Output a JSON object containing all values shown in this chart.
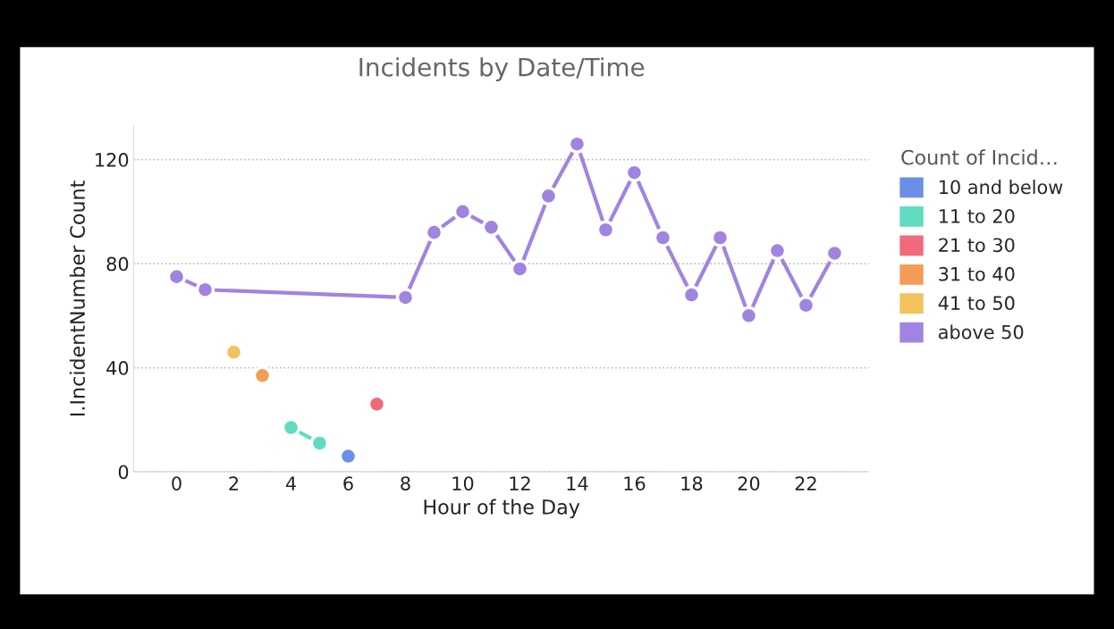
{
  "chart_data": {
    "type": "line",
    "title": "Incidents by Date/Time",
    "xlabel": "Hour of the Day",
    "ylabel": "I.IncidentNumber Count",
    "legend_title": "Count of Incid…",
    "series": [
      {
        "name": "10 and below",
        "color": "#6b8fe8",
        "x": [
          6
        ],
        "values": [
          6
        ]
      },
      {
        "name": "11 to 20",
        "color": "#5fdcc0",
        "x": [
          4,
          5
        ],
        "values": [
          17,
          11
        ]
      },
      {
        "name": "21 to 30",
        "color": "#ee6a7c",
        "x": [
          7
        ],
        "values": [
          26
        ]
      },
      {
        "name": "31 to 40",
        "color": "#f39c55",
        "x": [
          3
        ],
        "values": [
          37
        ]
      },
      {
        "name": "41 to 50",
        "color": "#f2c35a",
        "x": [
          2
        ],
        "values": [
          46
        ]
      },
      {
        "name": "above 50",
        "color": "#a084e0",
        "x": [
          0,
          1,
          8,
          9,
          10,
          11,
          12,
          13,
          14,
          15,
          16,
          17,
          18,
          19,
          20,
          21,
          22,
          23
        ],
        "values": [
          75,
          70,
          67,
          92,
          100,
          94,
          78,
          106,
          126,
          93,
          115,
          90,
          68,
          90,
          60,
          85,
          64,
          84
        ]
      }
    ],
    "xlim": [
      -1.5,
      24.2
    ],
    "xticks": [
      0,
      2,
      4,
      6,
      8,
      10,
      12,
      14,
      16,
      18,
      20,
      22
    ],
    "ylim": [
      0,
      133
    ],
    "yticks": [
      0,
      40,
      80,
      120
    ],
    "grid": "y",
    "legend": "right",
    "marker": "circle",
    "line_style": "solid"
  }
}
